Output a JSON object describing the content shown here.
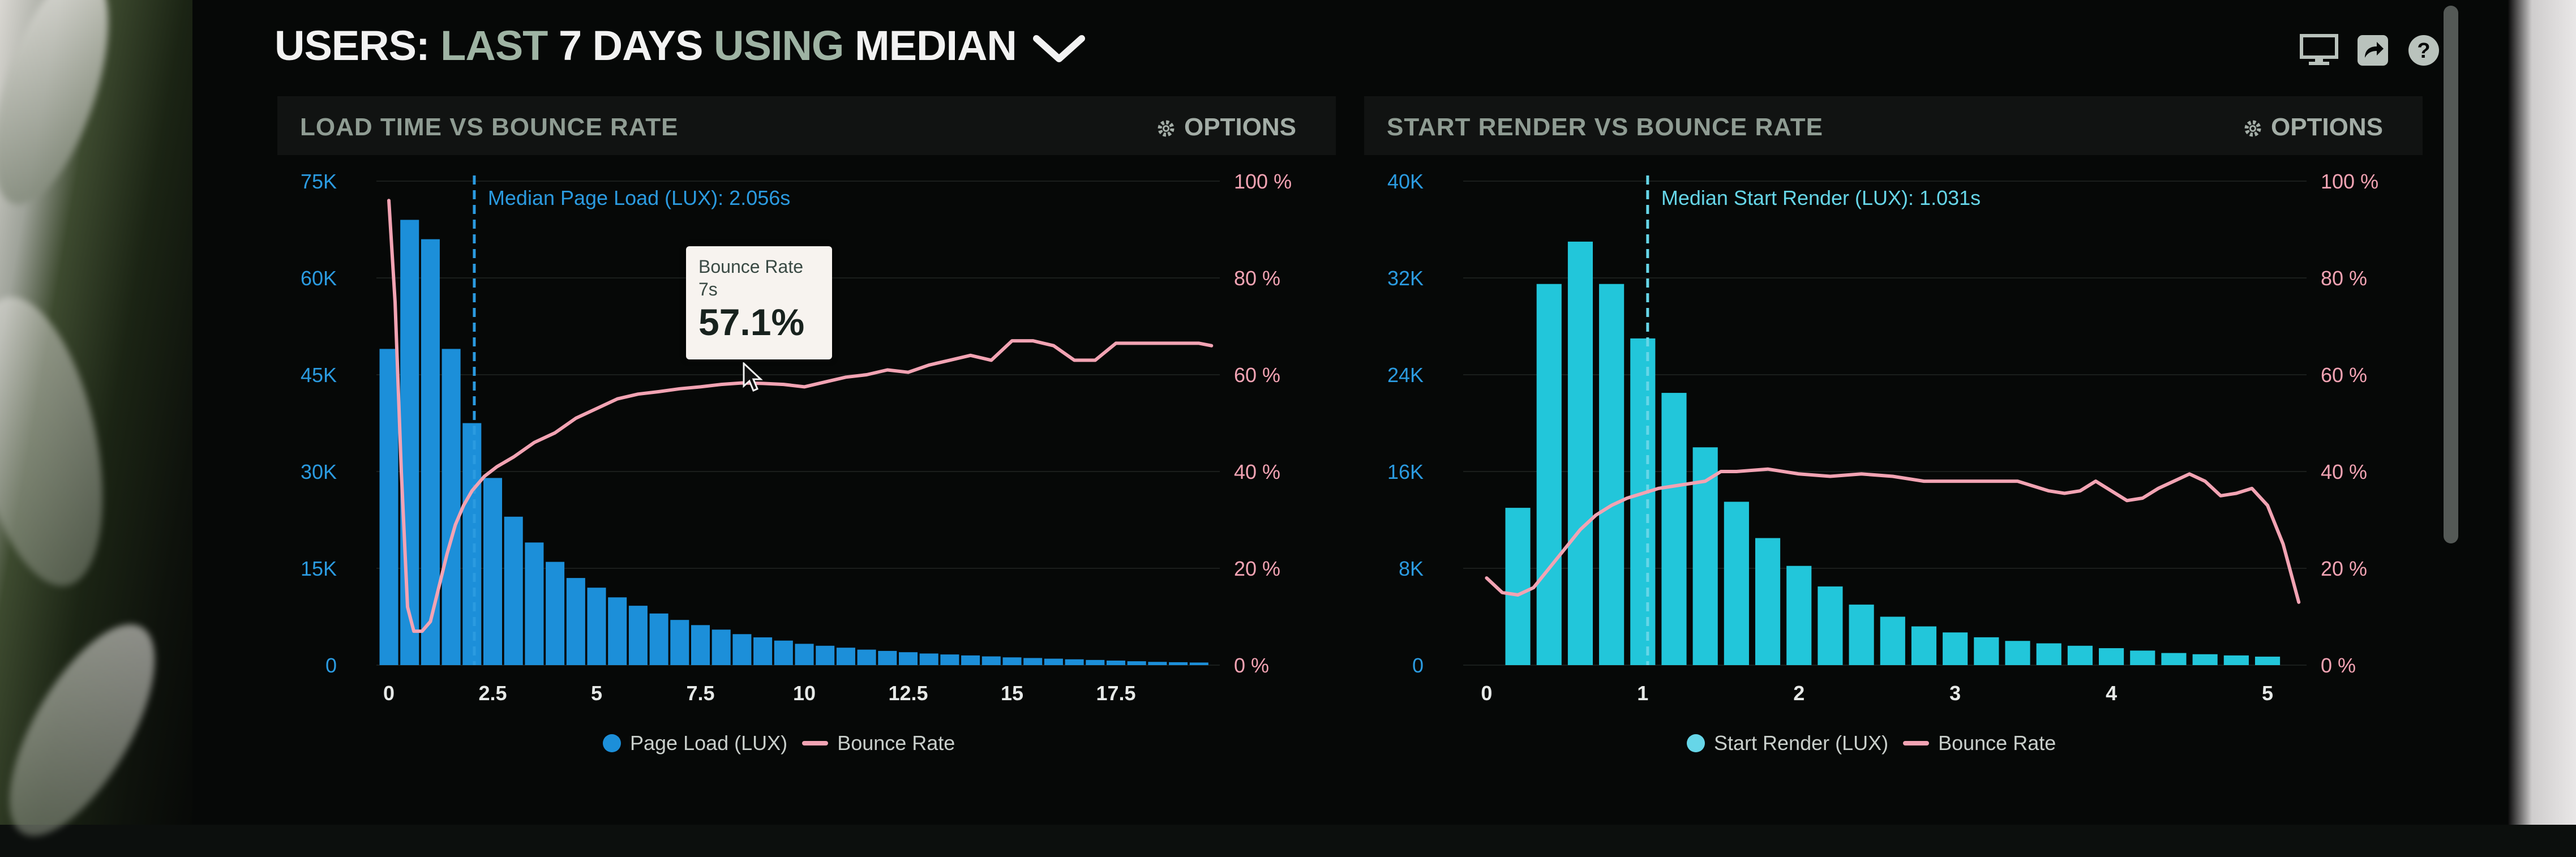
{
  "header": {
    "users_label": "USERS:",
    "range_label": "LAST",
    "days_label": "7 DAYS",
    "using_label": "USING",
    "stat_label": "MEDIAN"
  },
  "header_icons": [
    "desktop-icon",
    "share-icon",
    "help-icon"
  ],
  "panels": [
    {
      "title": "LOAD TIME VS BOUNCE RATE",
      "options_label": "OPTIONS",
      "median_label": "Median Page Load (LUX): 2.056s",
      "legend_bar": "Page Load (LUX)",
      "legend_line": "Bounce Rate",
      "tooltip": {
        "label": "Bounce Rate",
        "sub": "7s",
        "value": "57.1%"
      }
    },
    {
      "title": "START RENDER VS BOUNCE RATE",
      "options_label": "OPTIONS",
      "median_label": "Median Start Render (LUX): 1.031s",
      "legend_bar": "Start Render (LUX)",
      "legend_line": "Bounce Rate"
    }
  ],
  "colors": {
    "bar_left": "#1c8fd9",
    "bar_right": "#22c6da",
    "axis_left_text": "#2b9be0",
    "axis_right_text": "#f2a3b3",
    "bounce_line": "#f2a3b3",
    "median_left": "#2b9be0",
    "median_right": "#66d6e8"
  },
  "chart_data": [
    {
      "type": "bar",
      "title": "LOAD TIME VS BOUNCE RATE",
      "x_tick_labels": [
        "0",
        "2.5",
        "5",
        "7.5",
        "10",
        "12.5",
        "15",
        "17.5"
      ],
      "x_ticks": [
        0,
        2.5,
        5,
        7.5,
        10,
        12.5,
        15,
        17.5
      ],
      "x_range": [
        -0.3,
        20
      ],
      "y_tick_labels": [
        "0",
        "15K",
        "30K",
        "45K",
        "60K",
        "75K"
      ],
      "y_ticks": [
        0,
        15000,
        30000,
        45000,
        60000,
        75000
      ],
      "ylim": [
        0,
        75000
      ],
      "y2_tick_labels": [
        "0 %",
        "20 %",
        "40 %",
        "60 %",
        "80 %",
        "100 %"
      ],
      "y2_ticks": [
        0,
        20,
        40,
        60,
        80,
        100
      ],
      "y2lim": [
        0,
        100
      ],
      "bar_width": 0.45,
      "median_x": 2.056,
      "series": [
        {
          "name": "Page Load (LUX)",
          "kind": "bar",
          "x": [
            0,
            0.5,
            1,
            1.5,
            2,
            2.5,
            3,
            3.5,
            4,
            4.5,
            5,
            5.5,
            6,
            6.5,
            7,
            7.5,
            8,
            8.5,
            9,
            9.5,
            10,
            10.5,
            11,
            11.5,
            12,
            12.5,
            13,
            13.5,
            14,
            14.5,
            15,
            15.5,
            16,
            16.5,
            17,
            17.5,
            18,
            18.5,
            19,
            19.5
          ],
          "values": [
            49000,
            69000,
            66000,
            49000,
            37500,
            29000,
            23000,
            19000,
            16000,
            13500,
            12000,
            10500,
            9200,
            8000,
            7000,
            6200,
            5500,
            4800,
            4300,
            3800,
            3300,
            3000,
            2700,
            2400,
            2200,
            2000,
            1800,
            1650,
            1500,
            1350,
            1200,
            1100,
            1000,
            900,
            800,
            700,
            600,
            500,
            450,
            400
          ]
        },
        {
          "name": "Bounce Rate",
          "kind": "line",
          "x": [
            0,
            0.15,
            0.3,
            0.45,
            0.6,
            0.8,
            1,
            1.2,
            1.4,
            1.6,
            1.8,
            2,
            2.3,
            2.6,
            3,
            3.5,
            4,
            4.5,
            5,
            5.5,
            6,
            6.5,
            7,
            7.5,
            8,
            8.5,
            9,
            9.5,
            10,
            10.5,
            11,
            11.5,
            12,
            12.5,
            13,
            13.5,
            14,
            14.5,
            15,
            15.5,
            16,
            16.5,
            17,
            17.5,
            18,
            18.5,
            19,
            19.5,
            19.8
          ],
          "values": [
            96,
            75,
            40,
            12,
            7,
            7,
            9,
            16,
            23,
            29,
            33,
            36,
            39,
            41,
            43,
            46,
            48,
            51,
            53,
            55,
            56,
            56.5,
            57.1,
            57.5,
            58,
            58.3,
            58.2,
            58,
            57.5,
            58.5,
            59.5,
            60,
            61,
            60.5,
            62,
            63,
            64,
            63,
            67,
            67,
            66,
            63,
            63,
            66.5,
            66.5,
            66.5,
            66.5,
            66.5,
            66
          ]
        }
      ]
    },
    {
      "type": "bar",
      "title": "START RENDER VS BOUNCE RATE",
      "x_tick_labels": [
        "0",
        "1",
        "2",
        "3",
        "4",
        "5"
      ],
      "x_ticks": [
        0,
        1,
        2,
        3,
        4,
        5
      ],
      "x_range": [
        -0.15,
        5.25
      ],
      "y_tick_labels": [
        "0",
        "8K",
        "16K",
        "24K",
        "32K",
        "40K"
      ],
      "y_ticks": [
        0,
        8000,
        16000,
        24000,
        32000,
        40000
      ],
      "ylim": [
        0,
        40000
      ],
      "y2_tick_labels": [
        "0 %",
        "20 %",
        "40 %",
        "60 %",
        "80 %",
        "100 %"
      ],
      "y2_ticks": [
        0,
        20,
        40,
        60,
        80,
        100
      ],
      "y2lim": [
        0,
        100
      ],
      "bar_width": 0.16,
      "median_x": 1.031,
      "series": [
        {
          "name": "Start Render (LUX)",
          "kind": "bar",
          "x": [
            0.2,
            0.4,
            0.6,
            0.8,
            1.0,
            1.2,
            1.4,
            1.6,
            1.8,
            2.0,
            2.2,
            2.4,
            2.6,
            2.8,
            3.0,
            3.2,
            3.4,
            3.6,
            3.8,
            4.0,
            4.2,
            4.4,
            4.6,
            4.8,
            5.0
          ],
          "values": [
            13000,
            31500,
            35000,
            31500,
            27000,
            22500,
            18000,
            13500,
            10500,
            8200,
            6500,
            5000,
            4000,
            3200,
            2700,
            2300,
            2000,
            1800,
            1600,
            1400,
            1200,
            1000,
            900,
            800,
            700
          ]
        },
        {
          "name": "Bounce Rate",
          "kind": "line",
          "x": [
            0,
            0.1,
            0.2,
            0.3,
            0.4,
            0.5,
            0.6,
            0.7,
            0.8,
            0.9,
            1.0,
            1.1,
            1.2,
            1.3,
            1.4,
            1.5,
            1.6,
            1.8,
            2.0,
            2.2,
            2.4,
            2.6,
            2.8,
            3.0,
            3.2,
            3.4,
            3.6,
            3.7,
            3.8,
            3.9,
            4.0,
            4.1,
            4.2,
            4.3,
            4.4,
            4.5,
            4.6,
            4.7,
            4.8,
            4.9,
            5.0,
            5.1,
            5.2
          ],
          "values": [
            18,
            15,
            14.5,
            16,
            20,
            24,
            28,
            31,
            33,
            34.5,
            35.5,
            36.5,
            37,
            37.5,
            38,
            40,
            40,
            40.5,
            39.5,
            39,
            39.5,
            39,
            38,
            38,
            38,
            38,
            36,
            35.5,
            36,
            38,
            36,
            34,
            34.5,
            36.5,
            38,
            39.5,
            38,
            35,
            35.5,
            36.5,
            33,
            25,
            13
          ]
        }
      ]
    }
  ]
}
